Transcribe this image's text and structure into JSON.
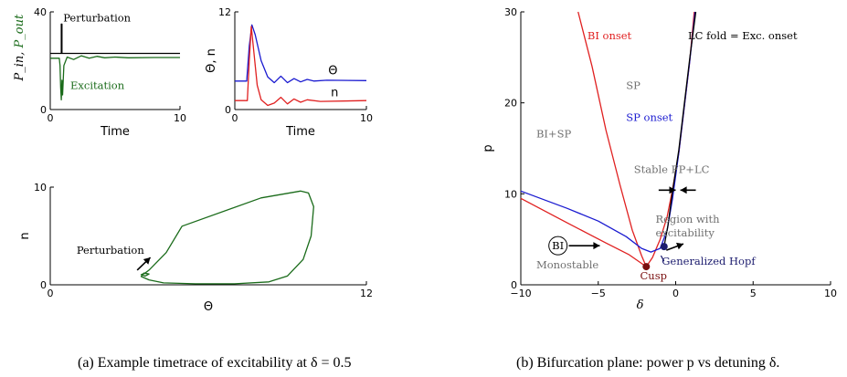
{
  "colors": {
    "black": "#000000",
    "green": "#1a6b1a",
    "red": "#e02020",
    "blue": "#1a1ad0",
    "navy": "#1c1c6e",
    "gray": "#707070",
    "darkred": "#7a1010"
  },
  "captions": {
    "a": "(a)  Example timetrace of excitability at δ = 0.5",
    "b": "(b)  Bifurcation plane: power p vs detuning δ."
  },
  "chart_data": [
    {
      "id": "power-timetrace",
      "type": "line",
      "xlabel": "Time",
      "ylabel": "P_in, P_out",
      "xlim": [
        0,
        10
      ],
      "ylim": [
        0,
        40
      ],
      "x_ticks": [
        "0",
        "10"
      ],
      "y_ticks": [
        "0",
        "40"
      ],
      "annotations": [
        "Perturbation",
        "Excitation"
      ],
      "series": [
        {
          "name": "P_in",
          "color": "black",
          "points": [
            [
              0,
              23
            ],
            [
              0.85,
              23
            ],
            [
              0.85,
              35
            ],
            [
              0.9,
              35
            ],
            [
              0.9,
              23
            ],
            [
              10,
              23
            ]
          ]
        },
        {
          "name": "P_out",
          "color": "green",
          "points": [
            [
              0,
              21
            ],
            [
              0.7,
              21
            ],
            [
              0.75,
              18
            ],
            [
              0.8,
              9
            ],
            [
              0.85,
              4
            ],
            [
              0.9,
              12
            ],
            [
              0.95,
              6
            ],
            [
              1.05,
              18
            ],
            [
              1.3,
              21.5
            ],
            [
              1.8,
              20.5
            ],
            [
              2.4,
              22
            ],
            [
              3,
              21
            ],
            [
              3.6,
              21.8
            ],
            [
              4.2,
              21.2
            ],
            [
              5,
              21.5
            ],
            [
              6,
              21.2
            ],
            [
              8,
              21.3
            ],
            [
              10,
              21.3
            ]
          ]
        }
      ]
    },
    {
      "id": "theta-n-timetrace",
      "type": "line",
      "xlabel": "Time",
      "ylabel": "Θ, n",
      "xlim": [
        0,
        10
      ],
      "ylim": [
        0,
        12
      ],
      "x_ticks": [
        "0",
        "10"
      ],
      "y_ticks": [
        "0",
        "12"
      ],
      "series": [
        {
          "name": "Θ",
          "color": "blue",
          "points": [
            [
              0,
              3.5
            ],
            [
              0.9,
              3.5
            ],
            [
              1.1,
              7.8
            ],
            [
              1.3,
              10.4
            ],
            [
              1.55,
              9.2
            ],
            [
              2,
              6
            ],
            [
              2.5,
              4
            ],
            [
              3,
              3.3
            ],
            [
              3.5,
              4.1
            ],
            [
              4,
              3.3
            ],
            [
              4.5,
              3.8
            ],
            [
              5,
              3.4
            ],
            [
              5.5,
              3.7
            ],
            [
              6,
              3.5
            ],
            [
              7,
              3.6
            ],
            [
              10,
              3.55
            ]
          ]
        },
        {
          "name": "n",
          "color": "red",
          "points": [
            [
              0,
              1.1
            ],
            [
              0.95,
              1.1
            ],
            [
              1.1,
              6
            ],
            [
              1.25,
              10.2
            ],
            [
              1.45,
              7
            ],
            [
              1.7,
              3
            ],
            [
              2,
              1.2
            ],
            [
              2.5,
              0.5
            ],
            [
              3,
              0.8
            ],
            [
              3.5,
              1.5
            ],
            [
              4,
              0.7
            ],
            [
              4.5,
              1.3
            ],
            [
              5,
              0.9
            ],
            [
              5.5,
              1.2
            ],
            [
              6.5,
              1
            ],
            [
              10,
              1.1
            ]
          ]
        }
      ]
    },
    {
      "id": "phase-portrait",
      "type": "line",
      "xlabel": "Θ",
      "ylabel": "n",
      "xlim": [
        0,
        12
      ],
      "ylim": [
        0,
        10
      ],
      "x_ticks": [
        "0",
        "12"
      ],
      "y_ticks": [
        "0",
        "10"
      ],
      "annotations": [
        "Perturbation"
      ],
      "series": [
        {
          "name": "trajectory",
          "color": "green",
          "points": [
            [
              3.55,
              1.1
            ],
            [
              3.75,
              1.5
            ],
            [
              4.4,
              3.3
            ],
            [
              5,
              6
            ],
            [
              8,
              8.9
            ],
            [
              9.5,
              9.6
            ],
            [
              9.8,
              9.4
            ],
            [
              10,
              8
            ],
            [
              9.9,
              5
            ],
            [
              9.6,
              2.6
            ],
            [
              9,
              0.9
            ],
            [
              8.3,
              0.3
            ],
            [
              7,
              0.1
            ],
            [
              5.5,
              0.1
            ],
            [
              4.3,
              0.2
            ],
            [
              3.75,
              0.5
            ],
            [
              3.45,
              0.85
            ],
            [
              3.55,
              1.2
            ],
            [
              3.75,
              1.1
            ],
            [
              3.6,
              0.9
            ],
            [
              3.45,
              1.05
            ],
            [
              3.55,
              1.15
            ]
          ]
        }
      ]
    },
    {
      "id": "bifurcation-plane",
      "type": "line",
      "xlabel": "δ",
      "ylabel": "p",
      "xlim": [
        -10,
        10
      ],
      "ylim": [
        0,
        30
      ],
      "x_ticks": [
        "−10",
        "−5",
        "0",
        "5",
        "10"
      ],
      "y_ticks": [
        "0",
        "10",
        "20",
        "30"
      ],
      "series": [
        {
          "name": "BI onset",
          "color": "red",
          "points": [
            [
              -6.3,
              30
            ],
            [
              -5.4,
              24
            ],
            [
              -4.5,
              17
            ],
            [
              -3.6,
              11
            ],
            [
              -2.8,
              6
            ],
            [
              -2.2,
              3.2
            ],
            [
              -1.9,
              2
            ]
          ]
        },
        {
          "name": "BI lower branch",
          "color": "red",
          "points": [
            [
              -10,
              9.5
            ],
            [
              -7,
              6.8
            ],
            [
              -4.5,
              4.6
            ],
            [
              -3,
              3.3
            ],
            [
              -1.9,
              2
            ]
          ]
        },
        {
          "name": "Cusp link",
          "color": "red",
          "points": [
            [
              -1.9,
              2
            ],
            [
              -1.5,
              3
            ],
            [
              -1,
              5
            ],
            [
              -0.55,
              7.5
            ],
            [
              -0.2,
              10.5
            ],
            [
              0.2,
              14.5
            ],
            [
              0.9,
              24.5
            ],
            [
              1.2,
              30
            ]
          ]
        },
        {
          "name": "SP onset",
          "color": "blue",
          "points": [
            [
              -10,
              10.3
            ],
            [
              -7,
              8.4
            ],
            [
              -5,
              7
            ],
            [
              -3.2,
              5.3
            ],
            [
              -2.2,
              4
            ],
            [
              -1.6,
              3.6
            ],
            [
              -1,
              4
            ],
            [
              -0.55,
              6
            ],
            [
              -0.2,
              9.5
            ],
            [
              0.2,
              14.5
            ],
            [
              0.9,
              24.5
            ],
            [
              1.25,
              30
            ]
          ]
        },
        {
          "name": "LC fold = Exc. onset",
          "color": "black",
          "points": [
            [
              -0.75,
              4.2
            ],
            [
              -0.5,
              6.5
            ],
            [
              -0.2,
              10.3
            ],
            [
              0.2,
              14.8
            ],
            [
              0.9,
              24.8
            ],
            [
              1.3,
              30
            ]
          ]
        }
      ],
      "markers": [
        {
          "name": "Cusp",
          "x": -1.9,
          "y": 2,
          "color": "darkred"
        },
        {
          "name": "Generalized Hopf",
          "x": -0.75,
          "y": 4.2,
          "color": "navy"
        }
      ],
      "labels": [
        {
          "text": "BI onset",
          "x": -5.7,
          "y": 27,
          "color": "red"
        },
        {
          "text": "LC fold = Exc. onset",
          "x": 0.8,
          "y": 27,
          "color": "black"
        },
        {
          "text": "SP",
          "x": -3.2,
          "y": 21.5,
          "color": "gray"
        },
        {
          "text": "SP onset",
          "x": -3.2,
          "y": 18,
          "color": "blue"
        },
        {
          "text": "BI+SP",
          "x": -9.0,
          "y": 16.2,
          "color": "gray"
        },
        {
          "text": "Stable FP+LC",
          "x": -2.7,
          "y": 12.3,
          "color": "gray"
        },
        {
          "text": "Region with",
          "x": -1.3,
          "y": 6.8,
          "color": "gray"
        },
        {
          "text": "excitability",
          "x": -1.3,
          "y": 5.3,
          "color": "gray"
        },
        {
          "text": "BI",
          "x": -7.6,
          "y": 4.3,
          "color": "black"
        },
        {
          "text": "Monostable",
          "x": -9.0,
          "y": 1.8,
          "color": "gray"
        },
        {
          "text": "Cusp",
          "x": -2.3,
          "y": 0.6,
          "color": "darkred"
        },
        {
          "text": "Generalized Hopf",
          "x": -0.9,
          "y": 2.2,
          "color": "navy"
        }
      ]
    }
  ]
}
